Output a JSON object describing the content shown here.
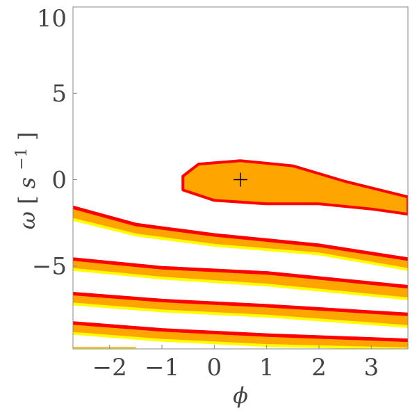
{
  "chart_data": {
    "type": "region",
    "xlabel": "ϕ",
    "ylabel": "ω [s⁻¹]",
    "ylabel_parts": {
      "symbol": "ω",
      "unit_base": "s",
      "unit_exp": "−1"
    },
    "xlim": [
      -2.7,
      3.7
    ],
    "ylim": [
      -9.8,
      10
    ],
    "x_ticks": [
      -2,
      -1,
      0,
      1,
      2,
      3
    ],
    "x_tick_labels": [
      "−2",
      "−1",
      "0",
      "1",
      "2",
      "3"
    ],
    "y_ticks": [
      10,
      5,
      0,
      -5
    ],
    "y_tick_labels": [
      "10",
      "5",
      "0",
      "−5"
    ],
    "grid": false,
    "legend": "none",
    "colors": {
      "fill": "#FFA500",
      "edge": "#FF0000",
      "lower_edge": "#FFFF00",
      "marker": "#000000"
    },
    "marker": {
      "x": 0.5,
      "y": 0,
      "symbol": "+"
    },
    "regions": [
      {
        "name": "",
        "kind": "closed",
        "outline": [
          [
            -0.6,
            0.2
          ],
          [
            -0.3,
            0.9
          ],
          [
            0.5,
            1.1
          ],
          [
            1.5,
            0.8
          ],
          [
            2.5,
            -0.1
          ],
          [
            3.7,
            -1.0
          ],
          [
            3.7,
            -2.0
          ],
          [
            3.0,
            -1.7
          ],
          [
            2.0,
            -1.4
          ],
          [
            1.0,
            -1.4
          ],
          [
            0.0,
            -1.2
          ],
          [
            -0.6,
            -0.6
          ]
        ]
      },
      {
        "name": "",
        "kind": "band",
        "upper": [
          [
            -2.7,
            -1.6
          ],
          [
            -1.5,
            -2.6
          ],
          [
            0.0,
            -3.2
          ],
          [
            2.0,
            -3.8
          ],
          [
            3.7,
            -4.6
          ]
        ],
        "lower": [
          [
            -2.7,
            -2.3
          ],
          [
            -1.5,
            -3.2
          ],
          [
            0.0,
            -3.8
          ],
          [
            2.0,
            -4.3
          ],
          [
            3.7,
            -5.2
          ]
        ]
      },
      {
        "name": "",
        "kind": "band",
        "upper": [
          [
            -2.7,
            -4.6
          ],
          [
            -1.0,
            -5.1
          ],
          [
            1.0,
            -5.4
          ],
          [
            3.7,
            -6.2
          ]
        ],
        "lower": [
          [
            -2.7,
            -5.2
          ],
          [
            -1.0,
            -5.7
          ],
          [
            1.0,
            -6.1
          ],
          [
            3.7,
            -6.9
          ]
        ]
      },
      {
        "name": "",
        "kind": "band",
        "upper": [
          [
            -2.7,
            -6.6
          ],
          [
            -1.0,
            -7.0
          ],
          [
            1.0,
            -7.3
          ],
          [
            3.7,
            -7.8
          ]
        ],
        "lower": [
          [
            -2.7,
            -7.2
          ],
          [
            -1.0,
            -7.6
          ],
          [
            1.0,
            -7.9
          ],
          [
            3.7,
            -8.5
          ]
        ]
      },
      {
        "name": "",
        "kind": "band",
        "upper": [
          [
            -2.7,
            -8.3
          ],
          [
            -1.0,
            -8.7
          ],
          [
            1.0,
            -9.0
          ],
          [
            3.7,
            -9.3
          ]
        ],
        "lower": [
          [
            -2.7,
            -8.9
          ],
          [
            -1.0,
            -9.3
          ],
          [
            1.0,
            -9.6
          ],
          [
            3.7,
            -9.8
          ]
        ]
      },
      {
        "name": "",
        "kind": "band",
        "upper": [
          [
            -2.7,
            -9.8
          ],
          [
            -1.5,
            -9.8
          ]
        ],
        "lower": [
          [
            -2.7,
            -9.8
          ],
          [
            -1.5,
            -9.8
          ]
        ]
      }
    ]
  }
}
